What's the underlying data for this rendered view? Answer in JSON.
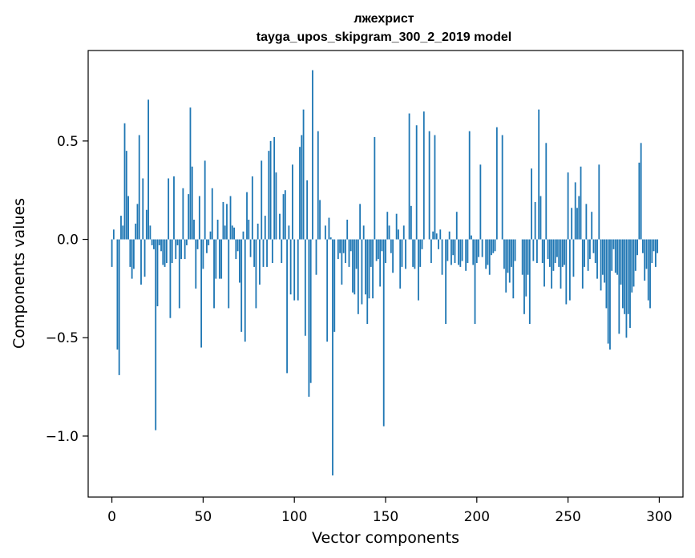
{
  "chart_data": {
    "type": "bar",
    "title": "лжехрист",
    "subtitle": "tayga_upos_skipgram_300_2_2019 model",
    "xlabel": "Vector components",
    "ylabel": "Components values",
    "xlim": [
      -13,
      313
    ],
    "ylim": [
      -1.31,
      0.96
    ],
    "x_ticks": [
      0,
      50,
      100,
      150,
      200,
      250,
      300
    ],
    "y_ticks": [
      -1.0,
      -0.5,
      0.0,
      0.5
    ],
    "x_tick_labels": [
      "0",
      "50",
      "100",
      "150",
      "200",
      "250",
      "300"
    ],
    "y_tick_labels": [
      "−1.0",
      "−0.5",
      "0.0",
      "0.5"
    ],
    "bar_color": "#1f77b4",
    "series": [
      {
        "name": "лжехрист",
        "values": [
          -0.14,
          0.05,
          0.0,
          -0.56,
          -0.69,
          0.12,
          0.07,
          0.59,
          0.45,
          0.22,
          -0.14,
          -0.2,
          -0.15,
          0.08,
          0.18,
          0.53,
          -0.23,
          0.31,
          -0.19,
          0.15,
          0.71,
          0.07,
          -0.03,
          -0.05,
          -0.97,
          -0.34,
          -0.03,
          -0.06,
          -0.13,
          -0.14,
          -0.12,
          0.31,
          -0.4,
          -0.12,
          0.32,
          -0.1,
          -0.03,
          -0.35,
          -0.1,
          0.26,
          -0.1,
          -0.03,
          0.23,
          0.67,
          0.37,
          0.1,
          -0.25,
          -0.05,
          0.22,
          -0.55,
          -0.15,
          0.4,
          -0.07,
          -0.03,
          0.04,
          0.26,
          -0.35,
          -0.2,
          0.1,
          -0.2,
          -0.2,
          0.19,
          0.07,
          0.18,
          -0.35,
          0.22,
          0.07,
          0.06,
          -0.1,
          -0.06,
          -0.22,
          -0.47,
          0.04,
          -0.52,
          0.24,
          0.1,
          -0.09,
          0.32,
          -0.14,
          -0.35,
          0.08,
          -0.23,
          0.4,
          -0.14,
          0.12,
          -0.14,
          0.45,
          0.5,
          -0.12,
          0.52,
          0.34,
          0.0,
          0.13,
          -0.12,
          0.23,
          0.25,
          -0.68,
          0.07,
          -0.28,
          0.38,
          -0.31,
          0.0,
          -0.31,
          0.47,
          0.53,
          0.66,
          -0.49,
          0.3,
          -0.8,
          -0.73,
          0.86,
          0.0,
          -0.18,
          0.55,
          0.2,
          0.0,
          0.0,
          0.07,
          -0.52,
          0.11,
          0.01,
          -1.2,
          -0.47,
          0.0,
          -0.1,
          -0.07,
          -0.23,
          -0.07,
          -0.12,
          0.1,
          -0.14,
          -0.06,
          -0.27,
          -0.28,
          -0.15,
          -0.38,
          0.18,
          -0.33,
          0.07,
          -0.28,
          -0.43,
          -0.3,
          -0.14,
          -0.3,
          0.52,
          -0.11,
          -0.1,
          -0.24,
          -0.06,
          -0.95,
          -0.12,
          0.14,
          0.07,
          -0.07,
          -0.17,
          0.0,
          0.13,
          0.05,
          -0.25,
          -0.14,
          0.07,
          -0.15,
          0.0,
          0.64,
          0.17,
          -0.14,
          -0.15,
          0.58,
          -0.31,
          -0.14,
          -0.05,
          0.65,
          0.0,
          0.0,
          0.55,
          -0.12,
          0.04,
          0.53,
          0.03,
          -0.05,
          0.05,
          -0.18,
          0.0,
          -0.43,
          -0.11,
          0.04,
          -0.13,
          -0.08,
          -0.12,
          0.14,
          -0.13,
          -0.14,
          -0.11,
          0.0,
          -0.16,
          -0.12,
          0.55,
          0.02,
          -0.13,
          -0.43,
          -0.12,
          -0.09,
          0.38,
          -0.09,
          0.0,
          -0.15,
          -0.13,
          -0.18,
          -0.08,
          -0.07,
          -0.06,
          0.57,
          0.0,
          0.0,
          0.53,
          -0.15,
          -0.27,
          -0.17,
          -0.22,
          -0.14,
          -0.3,
          -0.11,
          0.0,
          0.0,
          0.0,
          -0.18,
          -0.38,
          -0.29,
          -0.18,
          -0.43,
          0.36,
          -0.11,
          0.19,
          -0.12,
          0.66,
          0.22,
          -0.12,
          -0.24,
          0.49,
          -0.1,
          -0.14,
          -0.25,
          -0.16,
          -0.12,
          -0.09,
          -0.14,
          -0.25,
          -0.14,
          -0.13,
          -0.33,
          0.34,
          -0.31,
          0.16,
          -0.19,
          0.29,
          0.16,
          0.22,
          0.37,
          -0.25,
          -0.14,
          0.18,
          -0.16,
          -0.1,
          0.14,
          -0.07,
          -0.12,
          -0.2,
          0.38,
          -0.26,
          -0.18,
          -0.22,
          -0.35,
          -0.53,
          -0.56,
          -0.16,
          -0.05,
          -0.17,
          -0.18,
          -0.48,
          -0.23,
          -0.35,
          -0.38,
          -0.5,
          -0.38,
          -0.45,
          -0.27,
          -0.24,
          -0.16,
          -0.08,
          0.39,
          0.49,
          -0.07,
          -0.21,
          -0.15,
          -0.31,
          -0.35,
          -0.12,
          -0.06,
          -0.14,
          -0.07
        ]
      }
    ]
  }
}
